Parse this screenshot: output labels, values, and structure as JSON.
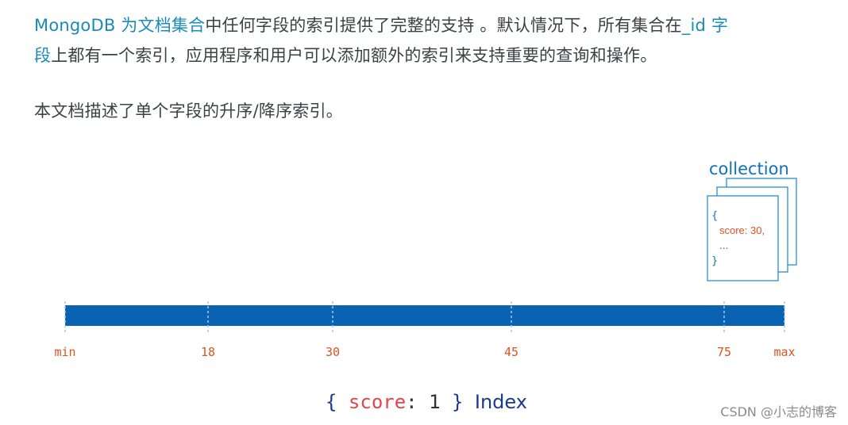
{
  "paragraph1": {
    "line1_link": "MongoDB 为文档集合",
    "line1_text": "中任何字段的索引提供了完整的支持 。默认情况下，所有集合在",
    "line1_link2": "_id 字",
    "line2_link": "段",
    "line2_text": "上都有一个索引，应用程序和用户可以添加额外的索引来支持重要的查询和操作。"
  },
  "paragraph2": "本文档描述了单个字段的升序/降序索引。",
  "diagram": {
    "collection_label": "collection",
    "doc_open": "{",
    "doc_field": "score: 30,",
    "doc_ellipsis": "...",
    "doc_close": "}",
    "ticks": [
      "min",
      "18",
      "30",
      "45",
      "75",
      "max"
    ],
    "index_label": {
      "open": "{",
      "field": "score",
      "colon": ":",
      "value": "1",
      "close": "}",
      "word": "Index"
    },
    "colors": {
      "bar": "#0a62b3",
      "tick_label": "#d9541e",
      "collection": "#1171b8",
      "field": "#e0464b"
    }
  },
  "watermark": "CSDN @小志的博客"
}
